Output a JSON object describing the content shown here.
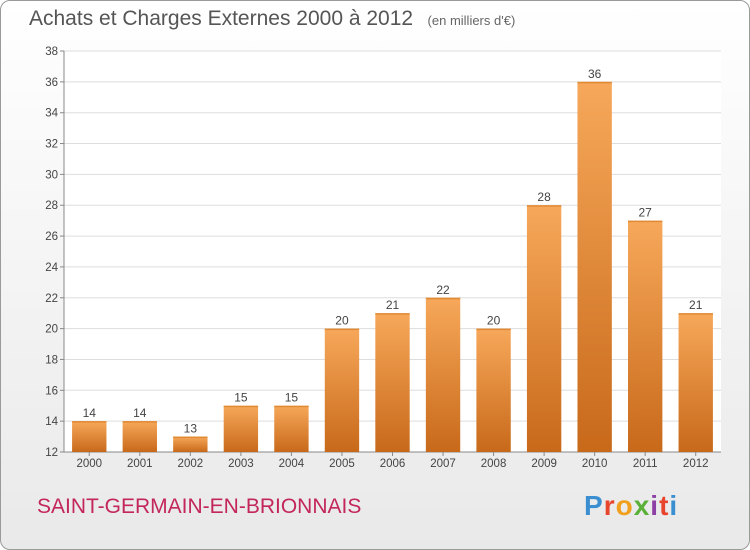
{
  "header": {
    "title": "Achats et Charges Externes 2000 à 2012",
    "unit": "(en milliers d'€)"
  },
  "footer": {
    "commune": "SAINT-GERMAIN-EN-BRIONNAIS",
    "logo_text": "Proxiti",
    "logo_colors": [
      "#3b8fd0",
      "#e8452e",
      "#f0a01c",
      "#5bb03a",
      "#8d3fa5",
      "#e8452e",
      "#3b8fd0"
    ]
  },
  "chart_data": {
    "type": "bar",
    "title": "Achats et Charges Externes 2000 à 2012",
    "subtitle": "(en milliers d'€)",
    "categories": [
      "2000",
      "2001",
      "2002",
      "2003",
      "2004",
      "2005",
      "2006",
      "2007",
      "2008",
      "2009",
      "2010",
      "2011",
      "2012"
    ],
    "values": [
      14,
      14,
      13,
      15,
      15,
      20,
      21,
      22,
      20,
      28,
      36,
      27,
      21
    ],
    "ylim": [
      12,
      38
    ],
    "yticks": [
      12,
      14,
      16,
      18,
      20,
      22,
      24,
      26,
      28,
      30,
      32,
      34,
      36,
      38
    ],
    "grid": true,
    "bar_color_light": "#f7a85a",
    "bar_color_dark": "#c8691a"
  }
}
